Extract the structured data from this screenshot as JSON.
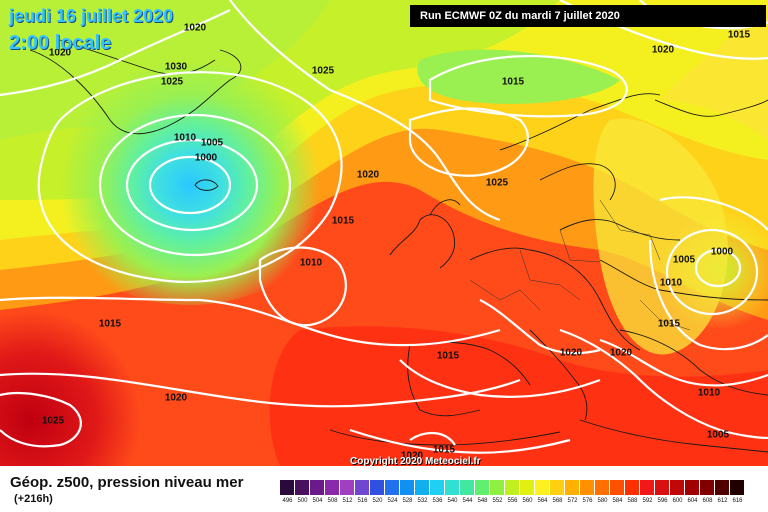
{
  "header": {
    "date": "jeudi 16 juillet 2020",
    "time": "2:00 locale",
    "run": "Run ECMWF 0Z du mardi 7 juillet 2020"
  },
  "isobar_labels": [
    {
      "text": "1020"
    },
    {
      "text": "1020"
    },
    {
      "text": "1030"
    },
    {
      "text": "1025"
    },
    {
      "text": "1025"
    },
    {
      "text": "1010"
    },
    {
      "text": "1005"
    },
    {
      "text": "1000"
    },
    {
      "text": "1020"
    },
    {
      "text": "1015"
    },
    {
      "text": "1010"
    },
    {
      "text": "1015"
    },
    {
      "text": "1015"
    },
    {
      "text": "1025"
    },
    {
      "text": "1020"
    },
    {
      "text": "1015"
    },
    {
      "text": "1005"
    },
    {
      "text": "1000"
    },
    {
      "text": "1010"
    },
    {
      "text": "1015"
    },
    {
      "text": "1020"
    },
    {
      "text": "1020"
    },
    {
      "text": "1015"
    },
    {
      "text": "1020"
    },
    {
      "text": "1025"
    },
    {
      "text": "1010"
    },
    {
      "text": "1005"
    },
    {
      "text": "1015"
    },
    {
      "text": "1020"
    }
  ],
  "footer": {
    "caption": "Géop. z500, pression niveau mer",
    "lead": "(+216h)",
    "copyright": "Copyright 2020 Meteociel.fr"
  },
  "scale": {
    "labels": [
      "496",
      "500",
      "504",
      "508",
      "512",
      "516",
      "520",
      "524",
      "528",
      "532",
      "536",
      "540",
      "544",
      "548",
      "552",
      "556",
      "560",
      "564",
      "568",
      "572",
      "576",
      "580",
      "584",
      "588",
      "592",
      "596",
      "600",
      "604",
      "608",
      "612",
      "616"
    ],
    "colors": [
      "#2a0a3a",
      "#4a1060",
      "#6a1a8a",
      "#8a2aaa",
      "#a040c0",
      "#7048d0",
      "#3050e0",
      "#2070f0",
      "#1090f0",
      "#10b0f0",
      "#20d0f0",
      "#30e0d0",
      "#40e8a0",
      "#60f070",
      "#90f040",
      "#c0f020",
      "#e0f010",
      "#fff020",
      "#ffd010",
      "#ffb000",
      "#ff9000",
      "#ff7000",
      "#ff5000",
      "#ff3000",
      "#f01818",
      "#d81010",
      "#c00808",
      "#a00000",
      "#800000",
      "#500000",
      "#200000"
    ]
  }
}
